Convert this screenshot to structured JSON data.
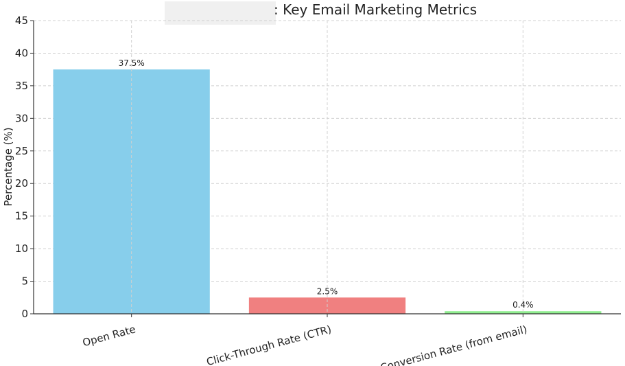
{
  "chart_data": {
    "type": "bar",
    "title": ": Key Email Marketing Metrics",
    "ylabel": "Percentage (%)",
    "xlabel": "",
    "categories": [
      "Open Rate",
      "Click-Through Rate (CTR)",
      "Conversion Rate (from email)"
    ],
    "values": [
      37.5,
      2.5,
      0.4
    ],
    "value_labels": [
      "37.5%",
      "2.5%",
      "0.4%"
    ],
    "colors": [
      "#87ceeb",
      "#f08080",
      "#90ee90"
    ],
    "ylim": [
      0,
      45
    ],
    "yticks": [
      0,
      5,
      10,
      15,
      20,
      25,
      30,
      35,
      40,
      45
    ],
    "grid": true
  }
}
